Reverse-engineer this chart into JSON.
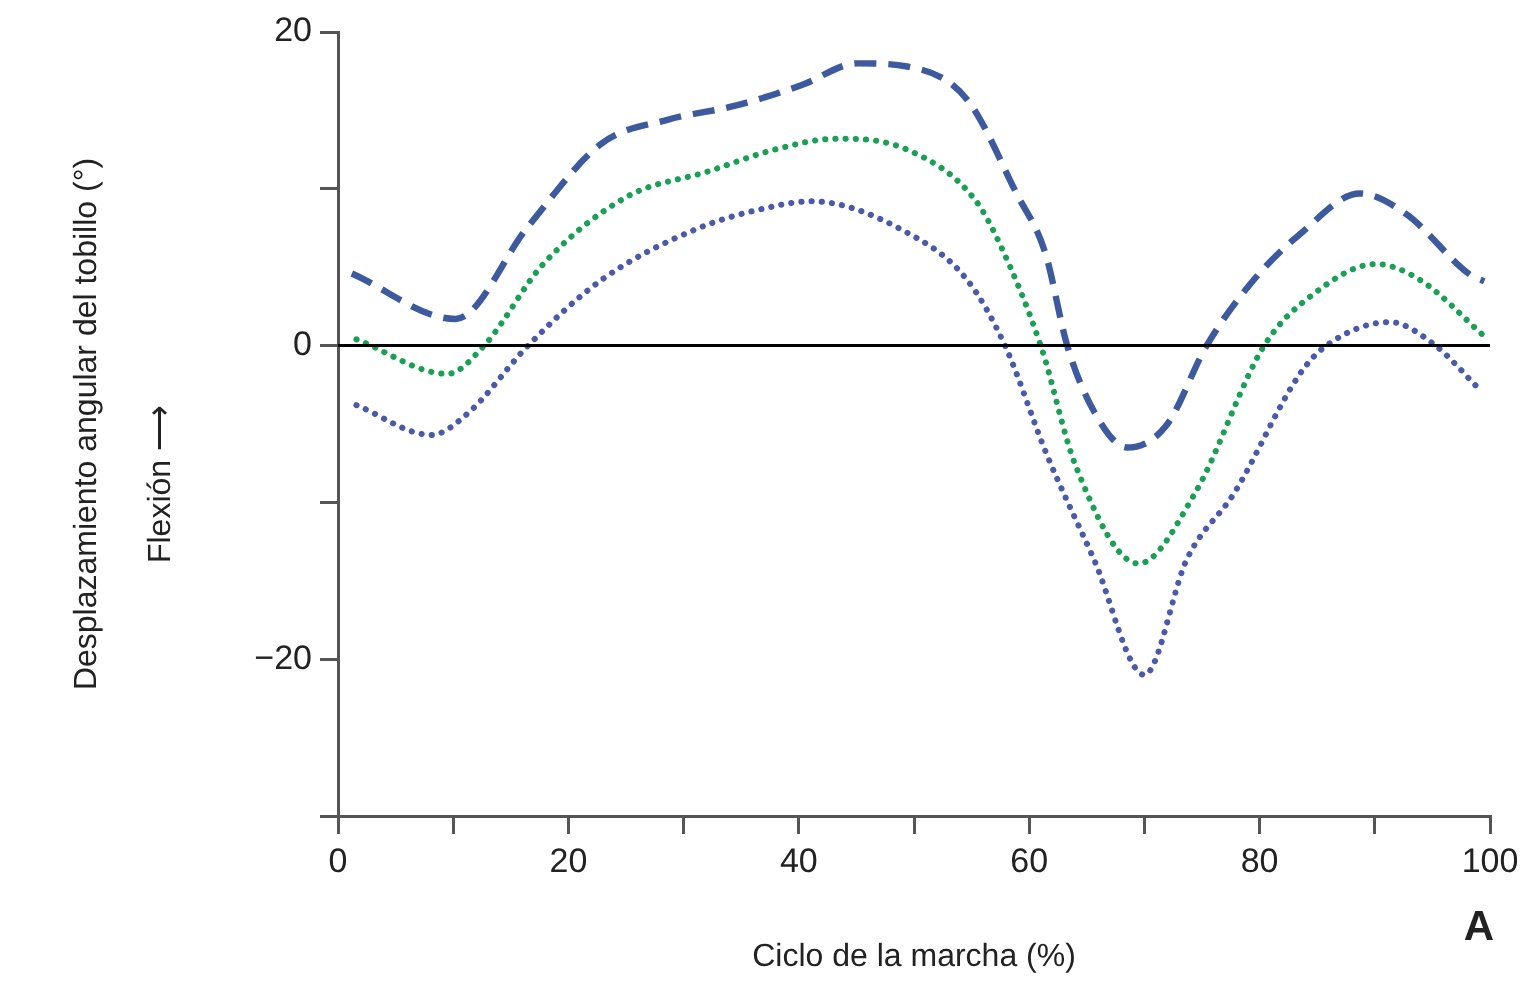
{
  "chart_data": {
    "type": "line",
    "ylabel": "Desplazamiento angular del tobillo (°)",
    "xlabel": "Ciclo de la marcha (%)",
    "annotations": [
      "Flexión ⟶",
      "A"
    ],
    "xlim": [
      0,
      100
    ],
    "xticks": [
      0,
      {
        "value": 10,
        "label": null
      },
      20,
      {
        "value": 30,
        "label": null
      },
      40,
      {
        "value": 50,
        "label": null
      },
      60,
      {
        "value": 70,
        "label": null
      },
      80,
      {
        "value": 90,
        "label": null
      },
      100
    ],
    "ylim": [
      -30,
      20
    ],
    "yticks": [
      {
        "value": -30,
        "label": null
      },
      -20,
      {
        "value": -10,
        "label": null
      },
      0,
      {
        "value": 10,
        "label": null
      },
      20
    ],
    "grid": false,
    "legend": false,
    "marker": "none",
    "ref_lines": [
      {
        "axis": "y",
        "value": 0,
        "label": null,
        "color": "#000000"
      }
    ],
    "series": [
      {
        "color": "#3d5a9e",
        "line_style": "dashed",
        "x": [
          1.2,
          10.2,
          16.5,
          22.9,
          28.6,
          34.5,
          40.2,
          45.1,
          49.4,
          54.6,
          58.9,
          61.4,
          63.3,
          65.7,
          68.5,
          71.9,
          75.4,
          79.5,
          83.5,
          88.7,
          92.7,
          98.3,
          99.5
        ],
        "values": [
          4.6,
          1.7,
          7.6,
          12.9,
          14.4,
          15.3,
          16.6,
          18.0,
          17.8,
          15.7,
          9.7,
          5.9,
          0,
          -4.3,
          -6.5,
          -5.1,
          0,
          4.2,
          7.1,
          9.7,
          8.4,
          4.5,
          4.1
        ]
      },
      {
        "color": "#1aa055",
        "line_style": "dotted",
        "x": [
          1.6,
          9.5,
          12.8,
          17.7,
          25.1,
          32.1,
          37.9,
          43.3,
          49.4,
          55.3,
          57.5,
          61.0,
          64.0,
          69.5,
          74.4,
          80.4,
          84.7,
          90.1,
          93.9,
          99.5
        ],
        "values": [
          0.4,
          -1.8,
          0.1,
          5.1,
          9.5,
          11.1,
          12.5,
          13.2,
          12.5,
          9.3,
          6.4,
          0,
          -7.6,
          -13.9,
          -9.4,
          0,
          3.3,
          5.2,
          4.2,
          0.6
        ]
      },
      {
        "color": "#4a5aa8",
        "line_style": "dotted",
        "x": [
          1.6,
          8.1,
          11.3,
          16.5,
          22.9,
          31.0,
          37.3,
          41.1,
          48.9,
          54.6,
          57.9,
          61.5,
          65.6,
          70.0,
          73.7,
          77.8,
          83.5,
          85.8,
          91.3,
          95.1,
          99.1
        ],
        "values": [
          -3.8,
          -5.7,
          -4.3,
          0,
          4.2,
          7.4,
          8.8,
          9.2,
          7.4,
          4.2,
          0,
          -6.9,
          -13.6,
          -21,
          -13.6,
          -9.4,
          -1.8,
          0,
          1.5,
          0.1,
          -2.8
        ]
      }
    ]
  }
}
